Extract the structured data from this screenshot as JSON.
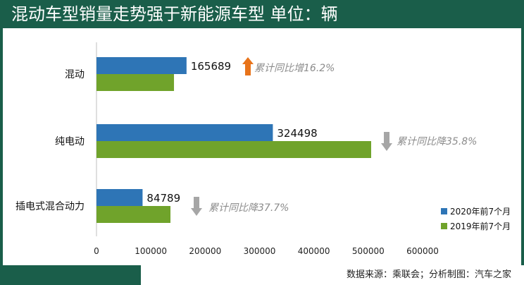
{
  "title": "混动车型销量走势强于新能源车型  单位：辆",
  "source": "数据来源：乘联会；分析制图：汽车之家",
  "chart_data": {
    "type": "bar",
    "orientation": "horizontal",
    "categories": [
      "混动",
      "纯电动",
      "插电式混合动力"
    ],
    "series": [
      {
        "name": "2020年前7个月",
        "color": "#2e75b6",
        "values": [
          165689,
          324498,
          84789
        ],
        "labels": [
          "165689",
          "324498",
          "84789"
        ]
      },
      {
        "name": "2019年前7个月",
        "color": "#70a32b",
        "values": [
          142600,
          505400,
          136100
        ]
      }
    ],
    "annotations": [
      {
        "category": "混动",
        "direction": "up",
        "text": "累计同比增16.2%"
      },
      {
        "category": "纯电动",
        "direction": "down",
        "text": "累计同比降35.8%"
      },
      {
        "category": "插电式混合动力",
        "direction": "down",
        "text": "累计同比降37.7%"
      }
    ],
    "xlim": [
      0,
      600000
    ],
    "xticks": [
      "0",
      "100000",
      "200000",
      "300000",
      "400000",
      "500000",
      "600000"
    ],
    "grid": false,
    "legend_position": "bottom-right",
    "colors": {
      "up_arrow": "#e8731a",
      "down_arrow": "#a6a6a6",
      "annotation_text": "#8c8c8c"
    }
  }
}
